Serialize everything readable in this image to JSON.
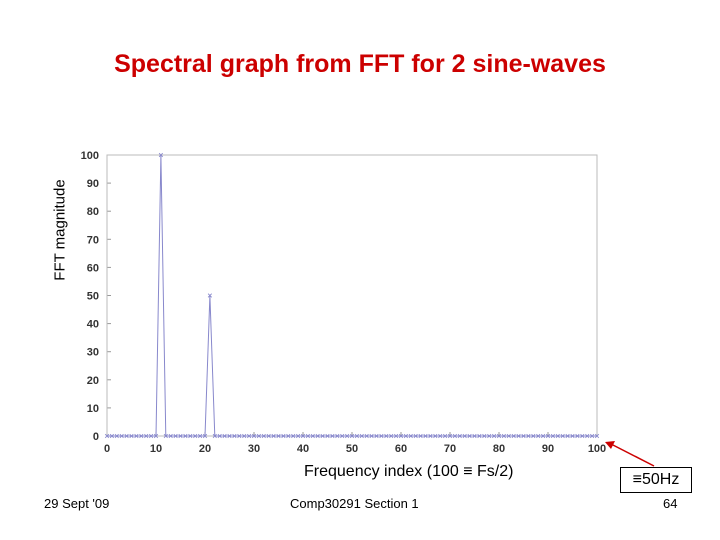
{
  "slide": {
    "title": "Spectral graph from FFT for 2 sine-waves",
    "ylabel": "FFT magnitude",
    "xlabel": "Frequency index (100 ≡ Fs/2)",
    "annotation": "≡50Hz",
    "footer_left": "29 Sept '09",
    "footer_center": "Comp30291 Section 1",
    "footer_right": "64"
  },
  "colors": {
    "title": "#cc0000",
    "series": "#8888cc",
    "arrow": "#cc0000"
  },
  "chart_data": {
    "type": "line",
    "title": "",
    "xlabel": "Frequency index (100 ≡ Fs/2)",
    "ylabel": "FFT magnitude",
    "xlim": [
      0,
      100
    ],
    "ylim": [
      0,
      100
    ],
    "xticks": [
      0,
      10,
      20,
      30,
      40,
      50,
      60,
      70,
      80,
      90,
      100
    ],
    "yticks": [
      0,
      10,
      20,
      30,
      40,
      50,
      60,
      70,
      80,
      90,
      100
    ],
    "grid": false,
    "markers": "x",
    "series": [
      {
        "x": [
          0,
          1,
          2,
          3,
          4,
          5,
          6,
          7,
          8,
          9,
          10,
          11,
          12,
          13,
          14,
          15,
          16,
          17,
          18,
          19,
          20,
          21,
          22,
          23,
          24,
          25,
          26,
          27,
          28,
          29,
          30,
          31,
          32,
          33,
          34,
          35,
          36,
          37,
          38,
          39,
          40,
          41,
          42,
          43,
          44,
          45,
          46,
          47,
          48,
          49,
          50,
          51,
          52,
          53,
          54,
          55,
          56,
          57,
          58,
          59,
          60,
          61,
          62,
          63,
          64,
          65,
          66,
          67,
          68,
          69,
          70,
          71,
          72,
          73,
          74,
          75,
          76,
          77,
          78,
          79,
          80,
          81,
          82,
          83,
          84,
          85,
          86,
          87,
          88,
          89,
          90,
          91,
          92,
          93,
          94,
          95,
          96,
          97,
          98,
          99,
          100
        ],
        "y": [
          0,
          0,
          0,
          0,
          0,
          0,
          0,
          0,
          0,
          0,
          0,
          100,
          0,
          0,
          0,
          0,
          0,
          0,
          0,
          0,
          0,
          50,
          0,
          0,
          0,
          0,
          0,
          0,
          0,
          0,
          0,
          0,
          0,
          0,
          0,
          0,
          0,
          0,
          0,
          0,
          0,
          0,
          0,
          0,
          0,
          0,
          0,
          0,
          0,
          0,
          0,
          0,
          0,
          0,
          0,
          0,
          0,
          0,
          0,
          0,
          0,
          0,
          0,
          0,
          0,
          0,
          0,
          0,
          0,
          0,
          0,
          0,
          0,
          0,
          0,
          0,
          0,
          0,
          0,
          0,
          0,
          0,
          0,
          0,
          0,
          0,
          0,
          0,
          0,
          0,
          0,
          0,
          0,
          0,
          0,
          0,
          0,
          0,
          0,
          0,
          0
        ]
      }
    ]
  }
}
